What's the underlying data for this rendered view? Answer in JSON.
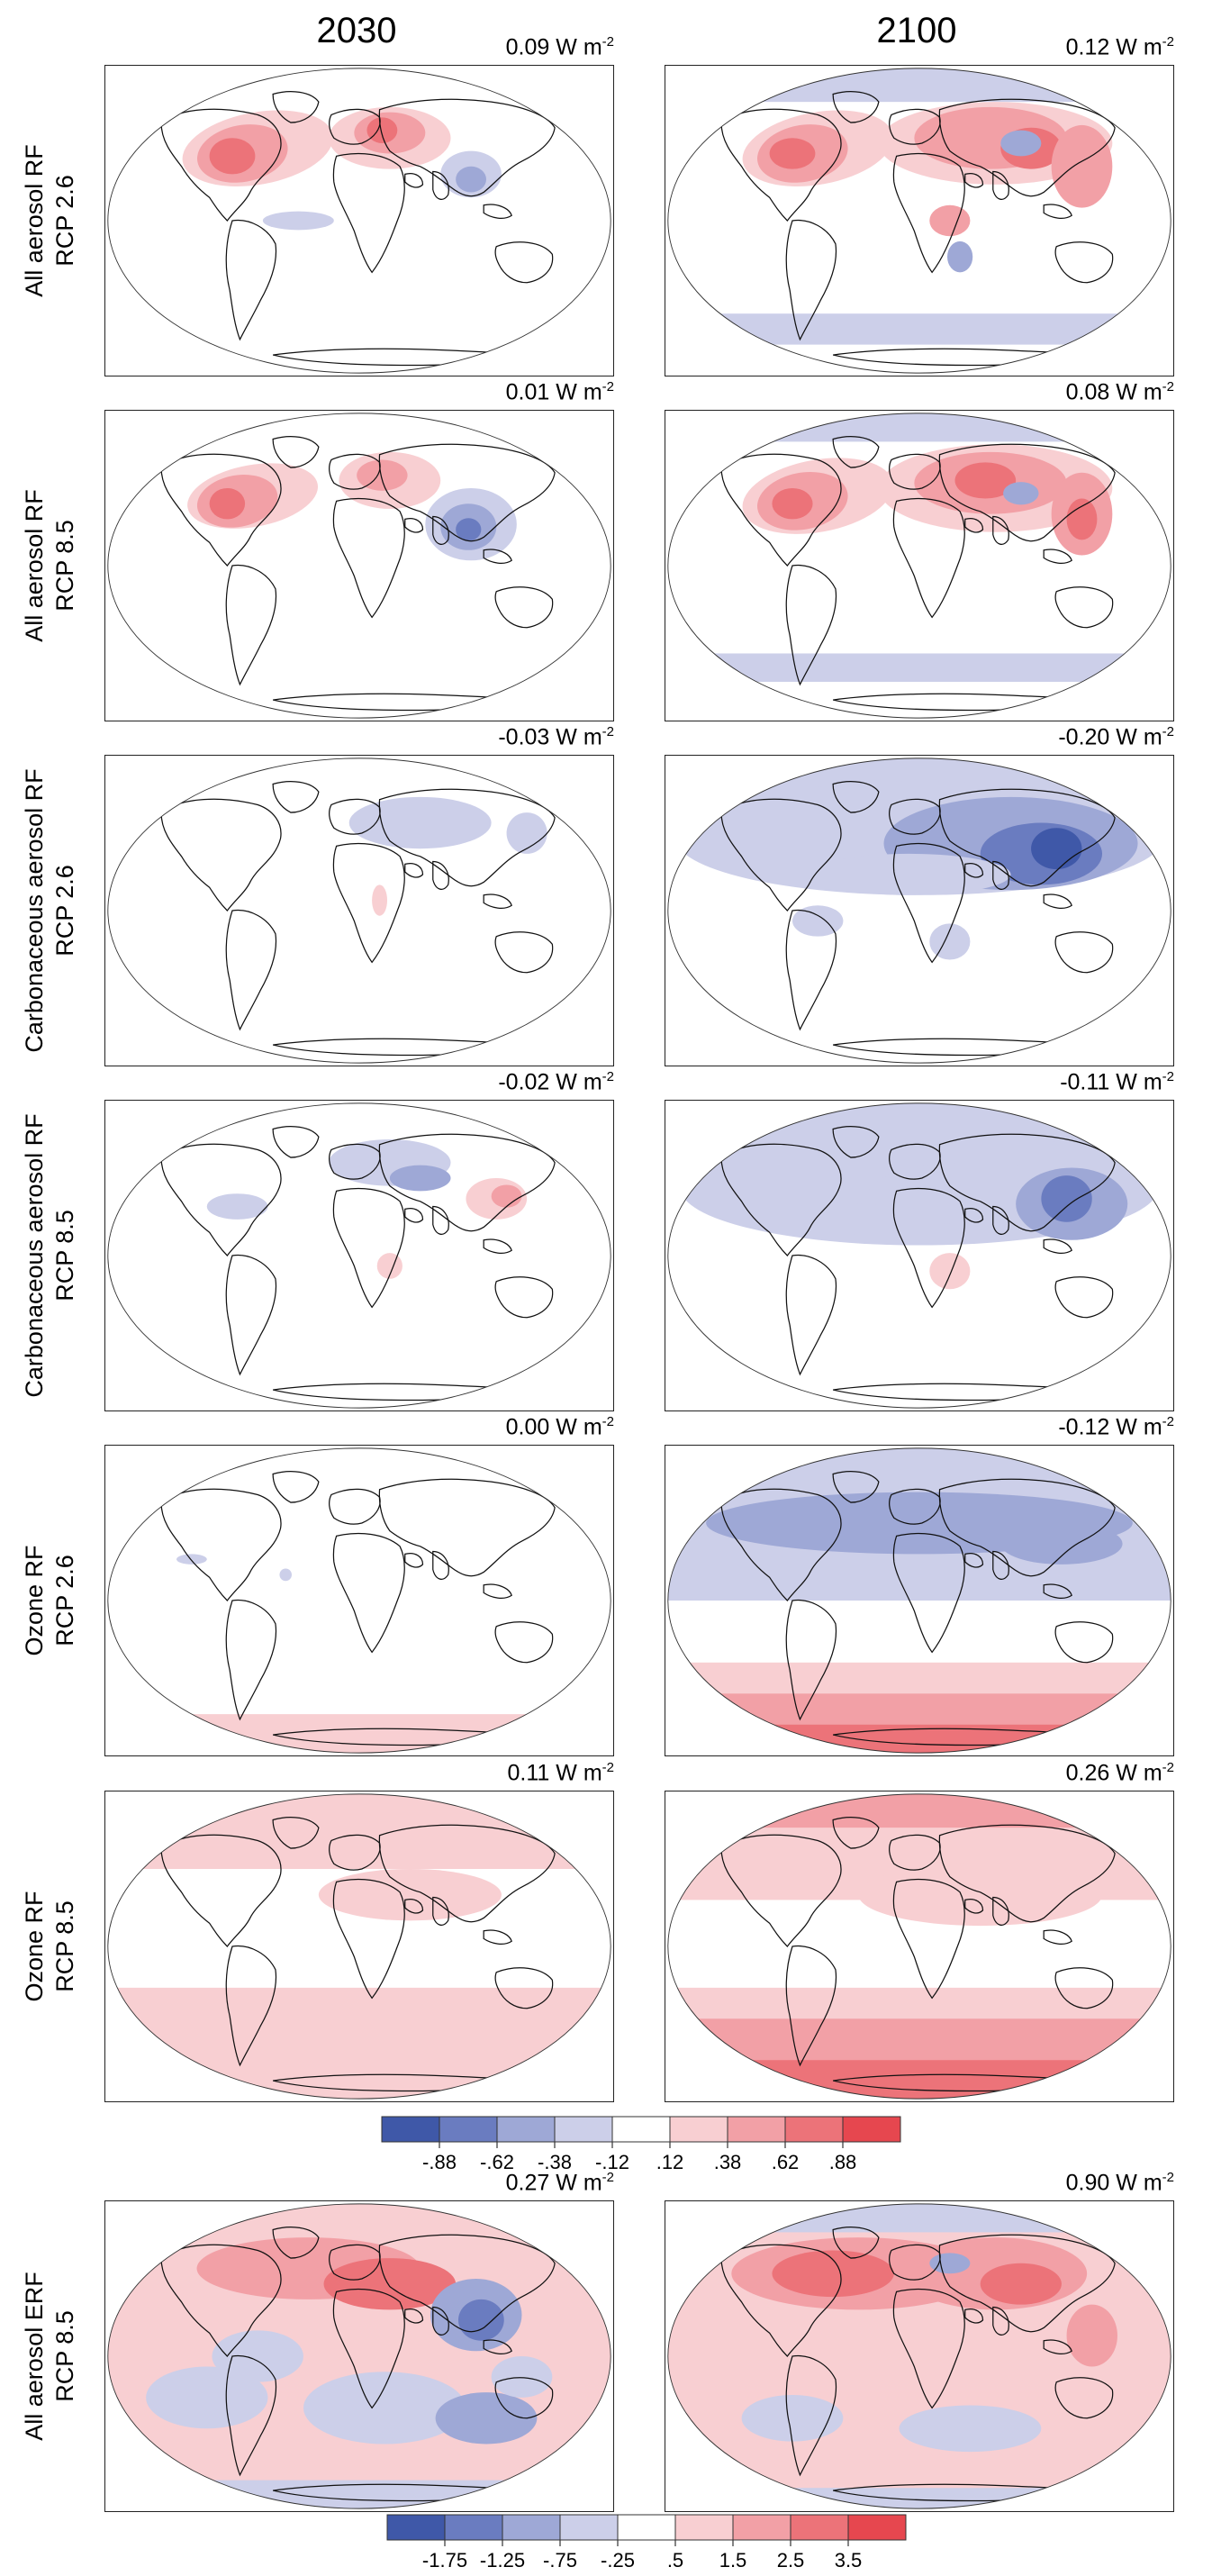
{
  "columns": [
    "2030",
    "2100"
  ],
  "unit": "W m",
  "unit_exponent": "-2",
  "rows": [
    {
      "label": [
        "All aerosol RF",
        "RCP 2.6"
      ],
      "values": [
        "0.09",
        "0.12"
      ]
    },
    {
      "label": [
        "All aerosol RF",
        "RCP 8.5"
      ],
      "values": [
        "0.01",
        "0.08"
      ]
    },
    {
      "label": [
        "Carbonaceous aerosol RF",
        "RCP 2.6"
      ],
      "values": [
        "-0.03",
        "-0.20"
      ]
    },
    {
      "label": [
        "Carbonaceous aerosol RF",
        "RCP 8.5"
      ],
      "values": [
        "-0.02",
        "-0.11"
      ]
    },
    {
      "label": [
        "Ozone RF",
        "RCP 2.6"
      ],
      "values": [
        "0.00",
        "-0.12"
      ]
    },
    {
      "label": [
        "Ozone RF",
        "RCP 8.5"
      ],
      "values": [
        "0.11",
        "0.26"
      ]
    },
    {
      "label": [
        "All aerosol ERF",
        "RCP 8.5"
      ],
      "values": [
        "0.27",
        "0.90"
      ]
    }
  ],
  "colorbar_rf": {
    "ticks": [
      "-.88",
      "-.62",
      "-.38",
      "-.12",
      ".12",
      ".38",
      ".62",
      ".88"
    ],
    "colors": [
      "#3f58a8",
      "#6a7cc0",
      "#9ea8d6",
      "#cccfe9",
      "#ffffff",
      "#f8cfd2",
      "#f2a0a6",
      "#ec7379",
      "#e6474f"
    ]
  },
  "colorbar_erf": {
    "ticks": [
      "-1.75",
      "-1.25",
      "-.75",
      "-.25",
      ".5",
      "1.5",
      "2.5",
      "3.5"
    ],
    "colors": [
      "#3f58a8",
      "#6a7cc0",
      "#9ea8d6",
      "#cccfe9",
      "#ffffff",
      "#f8cfd2",
      "#f2a0a6",
      "#ec7379",
      "#e6474f"
    ]
  },
  "colors": {
    "blue_strong": "#3f58a8",
    "blue_mid": "#6a7cc0",
    "blue_light": "#9ea8d6",
    "blue_faint": "#cccfe9",
    "red_faint": "#f8cfd2",
    "red_light": "#f2a0a6",
    "red_mid": "#ec7379",
    "red_strong": "#e6474f"
  }
}
